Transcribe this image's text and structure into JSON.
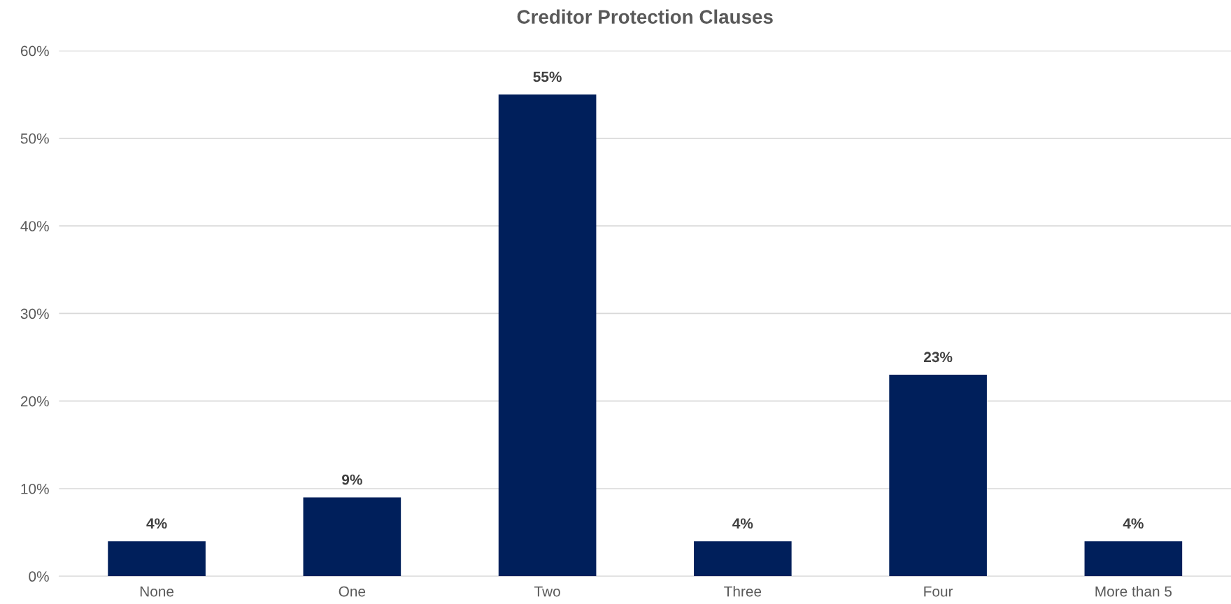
{
  "chart_data": {
    "type": "bar",
    "title": "Creditor Protection Clauses",
    "categories": [
      "None",
      "One",
      "Two",
      "Three",
      "Four",
      "More than 5"
    ],
    "values": [
      4,
      9,
      55,
      4,
      23,
      4
    ],
    "value_labels": [
      "4%",
      "9%",
      "55%",
      "4%",
      "23%",
      "4%"
    ],
    "color": "#001f5b",
    "ylim": [
      0,
      60
    ],
    "yticks": [
      {
        "value": 0,
        "label": "0%"
      },
      {
        "value": 10,
        "label": "10%"
      },
      {
        "value": 20,
        "label": "20%"
      },
      {
        "value": 30,
        "label": "30%"
      },
      {
        "value": 40,
        "label": "40%"
      },
      {
        "value": 50,
        "label": "50%"
      },
      {
        "value": 60,
        "label": "60%"
      }
    ],
    "grid": "y",
    "legend": false
  }
}
